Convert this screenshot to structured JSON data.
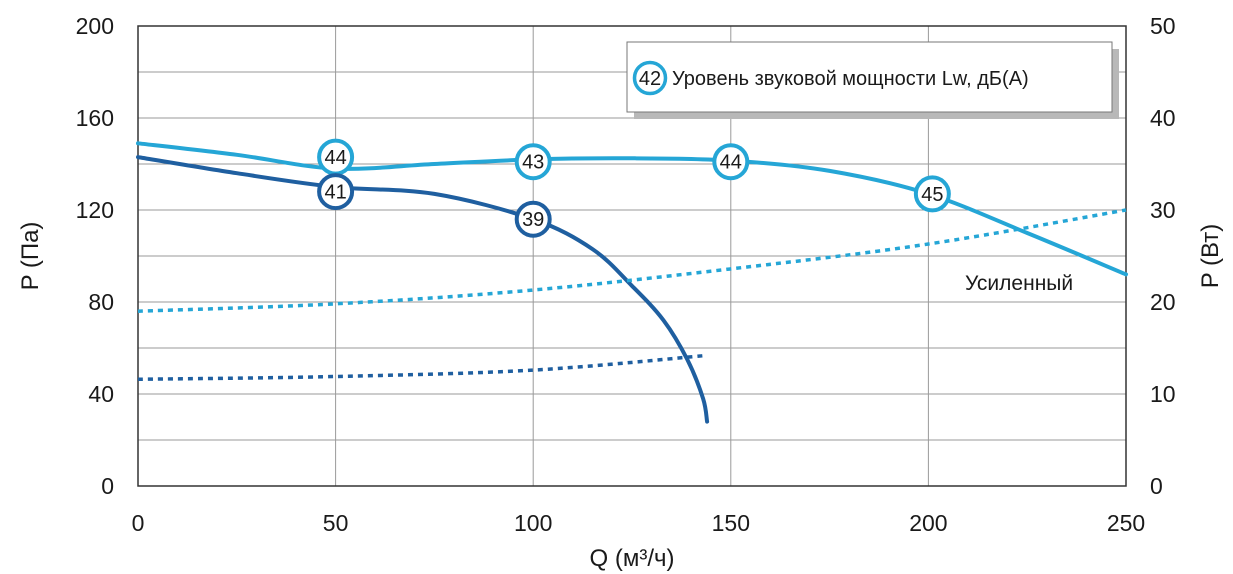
{
  "chart_data": {
    "type": "line",
    "xlabel": "Q (м³/ч)",
    "ylabel_left": "P (Па)",
    "ylabel_right": "P (Вт)",
    "xlim": [
      0,
      250
    ],
    "ylim_left": [
      0,
      200
    ],
    "ylim_right": [
      0,
      50
    ],
    "x_ticks": [
      "0",
      "50",
      "100",
      "150",
      "200",
      "250"
    ],
    "y_left_ticks": [
      "0",
      "40",
      "80",
      "120",
      "160",
      "200"
    ],
    "y_right_ticks": [
      "0",
      "10",
      "20",
      "30",
      "40",
      "50"
    ],
    "grid": true,
    "legend_position": "top-right",
    "legend": {
      "sample": "42",
      "label": "Уровень звуковой мощности Lw, дБ(А)"
    },
    "annotation": "Усиленный",
    "colors": {
      "dark": "#1f5fa0",
      "light": "#25a6d6",
      "grid": "#9a9a9a"
    },
    "series": [
      {
        "axis": "left",
        "style": "solid",
        "color": "#25a6d6",
        "points": [
          [
            0,
            149
          ],
          [
            25,
            144
          ],
          [
            50,
            138
          ],
          [
            75,
            140
          ],
          [
            100,
            142
          ],
          [
            125,
            142.5
          ],
          [
            150,
            141.5
          ],
          [
            175,
            137
          ],
          [
            200,
            127
          ],
          [
            225,
            110
          ],
          [
            250,
            92
          ]
        ],
        "labels": [
          {
            "x": 50,
            "y": 143,
            "text": "44"
          },
          {
            "x": 100,
            "y": 141,
            "text": "43"
          },
          {
            "x": 150,
            "y": 141,
            "text": "44"
          },
          {
            "x": 201,
            "y": 127,
            "text": "45"
          }
        ]
      },
      {
        "axis": "left",
        "style": "solid",
        "color": "#1f5fa0",
        "points": [
          [
            0,
            143
          ],
          [
            25,
            136
          ],
          [
            50,
            130
          ],
          [
            75,
            127
          ],
          [
            100,
            116
          ],
          [
            115,
            103
          ],
          [
            125,
            87
          ],
          [
            133,
            72
          ],
          [
            139,
            55
          ],
          [
            143,
            38
          ],
          [
            144,
            28
          ]
        ],
        "labels": [
          {
            "x": 50,
            "y": 128,
            "text": "41"
          },
          {
            "x": 100,
            "y": 116,
            "text": "39"
          }
        ]
      },
      {
        "axis": "right",
        "style": "dashed",
        "color": "#25a6d6",
        "points": [
          [
            0,
            19
          ],
          [
            50,
            19.8
          ],
          [
            100,
            21.3
          ],
          [
            150,
            23.6
          ],
          [
            200,
            26.3
          ],
          [
            250,
            30
          ]
        ]
      },
      {
        "axis": "right",
        "style": "dashed",
        "color": "#1f5fa0",
        "points": [
          [
            0,
            11.6
          ],
          [
            50,
            11.9
          ],
          [
            100,
            12.6
          ],
          [
            144,
            14.2
          ]
        ]
      }
    ]
  }
}
